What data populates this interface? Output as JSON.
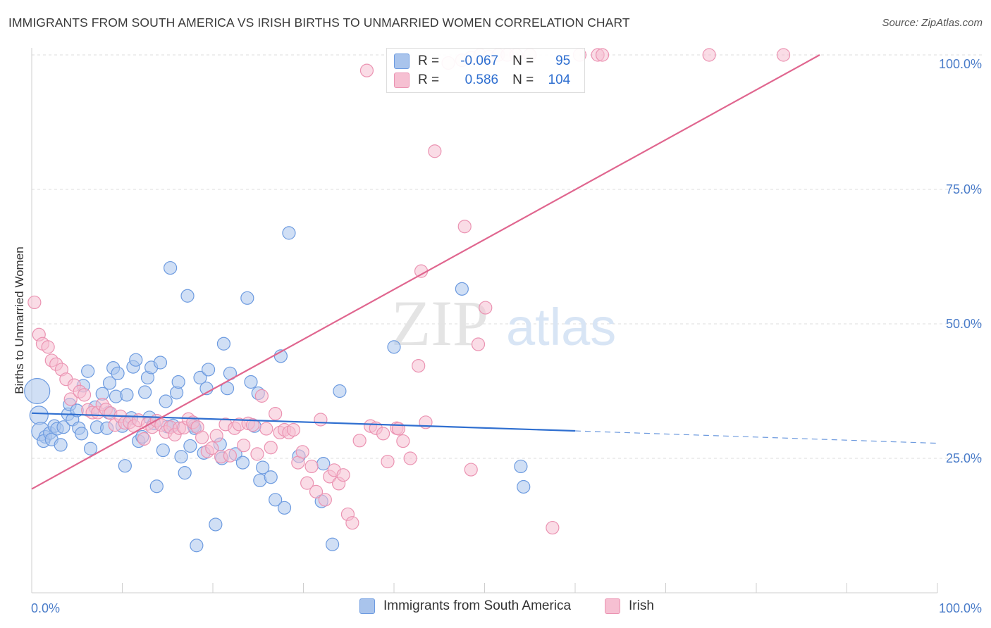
{
  "title": "IMMIGRANTS FROM SOUTH AMERICA VS IRISH BIRTHS TO UNMARRIED WOMEN CORRELATION CHART",
  "source": "Source: ZipAtlas.com",
  "watermark": {
    "zip": "ZIP",
    "atlas": "atlas"
  },
  "colors": {
    "blue_fill": "#a9c4ec",
    "blue_stroke": "#6d9be0",
    "blue_line": "#2f6fd0",
    "pink_fill": "#f6c0d2",
    "pink_stroke": "#eb93b2",
    "pink_line": "#e0668f",
    "grid": "#dcdcdc",
    "tick_text": "#4a7cc9"
  },
  "legend": {
    "rows": [
      {
        "r_label": "R =",
        "r_value": "-0.067",
        "n_label": "N =",
        "n_value": "95"
      },
      {
        "r_label": "R =",
        "r_value": "0.586",
        "n_label": "N =",
        "n_value": "104"
      }
    ]
  },
  "bottom_legend": {
    "blue": "Immigrants from South America",
    "pink": "Irish"
  },
  "chart_data": {
    "type": "scatter",
    "title": "IMMIGRANTS FROM SOUTH AMERICA VS IRISH BIRTHS TO UNMARRIED WOMEN CORRELATION CHART",
    "xlabel": "",
    "ylabel": "Births to Unmarried Women",
    "xlim": [
      0,
      100
    ],
    "ylim": [
      0,
      100
    ],
    "x_ticks": [
      "0.0%",
      "100.0%"
    ],
    "y_ticks": [
      {
        "value": 25,
        "label": "25.0%"
      },
      {
        "value": 50,
        "label": "50.0%"
      },
      {
        "value": 75,
        "label": "75.0%"
      },
      {
        "value": 100,
        "label": "100.0%"
      }
    ],
    "grid": true,
    "legend_position": "top-center",
    "series": [
      {
        "name": "Immigrants from South America",
        "color": "#6d9be0",
        "trend": {
          "x": [
            0,
            60
          ],
          "y": [
            33.4,
            30.1
          ],
          "dashed_to": [
            100,
            27.8
          ]
        },
        "points": [
          [
            0.6,
            37.5,
            3
          ],
          [
            0.8,
            33.0,
            2
          ],
          [
            1.0,
            30.0,
            2
          ],
          [
            1.5,
            29.0,
            1
          ],
          [
            1.3,
            28.2,
            1
          ],
          [
            2.0,
            29.7,
            1
          ],
          [
            2.5,
            31.0,
            1
          ],
          [
            2.2,
            28.5,
            1
          ],
          [
            2.8,
            30.5,
            1
          ],
          [
            3.2,
            27.5,
            1
          ],
          [
            3.5,
            30.8,
            1
          ],
          [
            4.0,
            33.2,
            1
          ],
          [
            4.2,
            35.0,
            1
          ],
          [
            4.5,
            32.2,
            1
          ],
          [
            5.0,
            33.9,
            1
          ],
          [
            5.2,
            30.6,
            1
          ],
          [
            5.5,
            29.6,
            1
          ],
          [
            5.7,
            38.5,
            1
          ],
          [
            6.2,
            41.2,
            1
          ],
          [
            6.5,
            26.8,
            1
          ],
          [
            7.0,
            34.5,
            1
          ],
          [
            7.2,
            30.8,
            1
          ],
          [
            7.8,
            37.0,
            1
          ],
          [
            8.3,
            30.6,
            1
          ],
          [
            8.5,
            33.5,
            1
          ],
          [
            8.6,
            39.0,
            1
          ],
          [
            9.0,
            41.8,
            1
          ],
          [
            9.3,
            36.5,
            1
          ],
          [
            9.5,
            40.8,
            1
          ],
          [
            10.0,
            31.0,
            1
          ],
          [
            10.3,
            23.6,
            1
          ],
          [
            10.5,
            36.8,
            1
          ],
          [
            11.0,
            32.5,
            1
          ],
          [
            11.2,
            42.0,
            1
          ],
          [
            11.5,
            43.3,
            1
          ],
          [
            11.8,
            28.2,
            1
          ],
          [
            12.2,
            29.0,
            1
          ],
          [
            12.5,
            37.3,
            1
          ],
          [
            12.8,
            40.0,
            1
          ],
          [
            13.0,
            32.6,
            1
          ],
          [
            13.2,
            41.9,
            1
          ],
          [
            13.5,
            31.5,
            1
          ],
          [
            13.8,
            19.8,
            1
          ],
          [
            14.2,
            42.8,
            1
          ],
          [
            14.5,
            26.5,
            1
          ],
          [
            14.8,
            35.6,
            1
          ],
          [
            15.0,
            30.9,
            1
          ],
          [
            15.3,
            60.4,
            1
          ],
          [
            15.6,
            31.1,
            1
          ],
          [
            16.0,
            37.2,
            1
          ],
          [
            16.2,
            39.2,
            1
          ],
          [
            16.5,
            25.3,
            1
          ],
          [
            16.9,
            22.3,
            1
          ],
          [
            17.2,
            55.2,
            1
          ],
          [
            17.5,
            27.3,
            1
          ],
          [
            17.9,
            31.0,
            1
          ],
          [
            18.0,
            30.6,
            1
          ],
          [
            18.2,
            8.8,
            1
          ],
          [
            18.6,
            40.0,
            1
          ],
          [
            19.0,
            26.0,
            1
          ],
          [
            19.3,
            38.0,
            1
          ],
          [
            19.5,
            41.5,
            1
          ],
          [
            20.3,
            12.7,
            1
          ],
          [
            20.8,
            27.6,
            1
          ],
          [
            21.0,
            25.0,
            1
          ],
          [
            21.2,
            46.3,
            1
          ],
          [
            21.6,
            38.0,
            1
          ],
          [
            21.9,
            40.8,
            1
          ],
          [
            22.5,
            25.8,
            1
          ],
          [
            23.3,
            24.2,
            1
          ],
          [
            23.8,
            54.8,
            1
          ],
          [
            24.2,
            39.2,
            1
          ],
          [
            24.6,
            31.0,
            1
          ],
          [
            25.0,
            37.1,
            1
          ],
          [
            25.2,
            20.9,
            1
          ],
          [
            25.5,
            23.3,
            1
          ],
          [
            26.4,
            21.5,
            1
          ],
          [
            26.9,
            17.3,
            1
          ],
          [
            27.5,
            44.0,
            1
          ],
          [
            27.9,
            15.8,
            1
          ],
          [
            28.4,
            66.9,
            1
          ],
          [
            29.5,
            25.4,
            1
          ],
          [
            32.0,
            17.0,
            1
          ],
          [
            32.2,
            24.0,
            1
          ],
          [
            33.2,
            9.0,
            1
          ],
          [
            34.0,
            37.5,
            1
          ],
          [
            40.0,
            45.7,
            1
          ],
          [
            47.5,
            56.5,
            1
          ],
          [
            54.0,
            23.5,
            1
          ],
          [
            54.3,
            19.7,
            1
          ]
        ]
      },
      {
        "name": "Irish",
        "color": "#eb93b2",
        "trend": {
          "x": [
            0,
            87
          ],
          "y": [
            19.3,
            100.0
          ]
        },
        "points": [
          [
            0.3,
            54.0,
            1
          ],
          [
            0.8,
            48.0,
            1
          ],
          [
            1.2,
            46.3,
            1
          ],
          [
            1.8,
            45.7,
            1
          ],
          [
            2.2,
            43.2,
            1
          ],
          [
            2.7,
            42.5,
            1
          ],
          [
            3.3,
            41.5,
            1
          ],
          [
            3.8,
            39.7,
            1
          ],
          [
            4.3,
            36.0,
            1
          ],
          [
            4.7,
            38.6,
            1
          ],
          [
            5.3,
            37.4,
            1
          ],
          [
            5.8,
            36.8,
            1
          ],
          [
            6.2,
            34.0,
            1
          ],
          [
            6.7,
            33.5,
            1
          ],
          [
            7.3,
            33.5,
            1
          ],
          [
            7.8,
            35.0,
            1
          ],
          [
            8.2,
            34.1,
            1
          ],
          [
            8.7,
            33.4,
            1
          ],
          [
            9.2,
            31.2,
            1
          ],
          [
            9.8,
            32.8,
            1
          ],
          [
            10.3,
            31.6,
            1
          ],
          [
            10.8,
            31.7,
            1
          ],
          [
            11.3,
            31.0,
            1
          ],
          [
            11.8,
            32.1,
            1
          ],
          [
            12.4,
            28.6,
            1
          ],
          [
            12.8,
            31.4,
            1
          ],
          [
            13.3,
            30.8,
            1
          ],
          [
            13.8,
            32.0,
            1
          ],
          [
            14.3,
            31.2,
            1
          ],
          [
            14.8,
            29.9,
            1
          ],
          [
            15.3,
            30.8,
            1
          ],
          [
            15.8,
            29.4,
            1
          ],
          [
            16.3,
            30.6,
            1
          ],
          [
            16.8,
            30.7,
            1
          ],
          [
            17.3,
            32.3,
            1
          ],
          [
            17.8,
            31.7,
            1
          ],
          [
            18.3,
            30.8,
            1
          ],
          [
            18.8,
            28.9,
            1
          ],
          [
            19.4,
            26.3,
            1
          ],
          [
            19.9,
            26.9,
            1
          ],
          [
            20.4,
            29.2,
            1
          ],
          [
            20.9,
            25.3,
            1
          ],
          [
            21.4,
            31.3,
            1
          ],
          [
            21.9,
            25.5,
            1
          ],
          [
            22.4,
            30.6,
            1
          ],
          [
            22.9,
            31.3,
            1
          ],
          [
            23.4,
            27.4,
            1
          ],
          [
            23.9,
            31.5,
            1
          ],
          [
            24.4,
            31.2,
            1
          ],
          [
            24.9,
            25.8,
            1
          ],
          [
            25.4,
            36.6,
            1
          ],
          [
            25.9,
            30.5,
            1
          ],
          [
            26.4,
            27.0,
            1
          ],
          [
            26.9,
            33.3,
            1
          ],
          [
            27.4,
            29.8,
            1
          ],
          [
            27.9,
            30.3,
            1
          ],
          [
            28.4,
            29.8,
            1
          ],
          [
            28.9,
            30.3,
            1
          ],
          [
            29.4,
            24.2,
            1
          ],
          [
            29.9,
            26.2,
            1
          ],
          [
            30.4,
            20.4,
            1
          ],
          [
            30.9,
            23.5,
            1
          ],
          [
            31.4,
            18.8,
            1
          ],
          [
            31.9,
            32.2,
            1
          ],
          [
            32.4,
            17.3,
            1
          ],
          [
            32.9,
            21.6,
            1
          ],
          [
            33.4,
            22.8,
            1
          ],
          [
            33.9,
            20.3,
            1
          ],
          [
            34.4,
            21.9,
            1
          ],
          [
            34.9,
            14.6,
            1
          ],
          [
            35.4,
            13.0,
            1
          ],
          [
            36.2,
            28.3,
            1
          ],
          [
            37.4,
            31.0,
            1
          ],
          [
            38.0,
            30.6,
            1
          ],
          [
            38.8,
            29.6,
            1
          ],
          [
            39.3,
            24.4,
            1
          ],
          [
            40.3,
            30.6,
            1
          ],
          [
            41.0,
            28.2,
            1
          ],
          [
            41.8,
            25.0,
            1
          ],
          [
            42.7,
            42.2,
            1
          ],
          [
            43.5,
            31.7,
            1
          ],
          [
            43.0,
            59.8,
            1
          ],
          [
            44.5,
            82.1,
            1
          ],
          [
            46.0,
            98.5,
            1
          ],
          [
            47.5,
            99.0,
            1
          ],
          [
            48.5,
            99.5,
            1
          ],
          [
            49.5,
            100.0,
            1
          ],
          [
            50.5,
            99.7,
            1
          ],
          [
            51.5,
            100.0,
            1
          ],
          [
            47.8,
            68.1,
            1
          ],
          [
            48.5,
            22.9,
            1
          ],
          [
            49.3,
            46.2,
            1
          ],
          [
            50.1,
            53.0,
            1
          ],
          [
            52.5,
            100.0,
            1
          ],
          [
            53.5,
            100.0,
            1
          ],
          [
            55.0,
            100.0,
            1
          ],
          [
            60.5,
            100.0,
            1
          ],
          [
            62.5,
            100.0,
            1
          ],
          [
            63.0,
            100.0,
            1
          ],
          [
            74.8,
            100.0,
            1
          ],
          [
            83.0,
            100.0,
            1
          ],
          [
            37.0,
            97.1,
            1
          ],
          [
            57.5,
            12.1,
            1
          ],
          [
            40.5,
            30.5,
            1
          ]
        ]
      }
    ]
  }
}
